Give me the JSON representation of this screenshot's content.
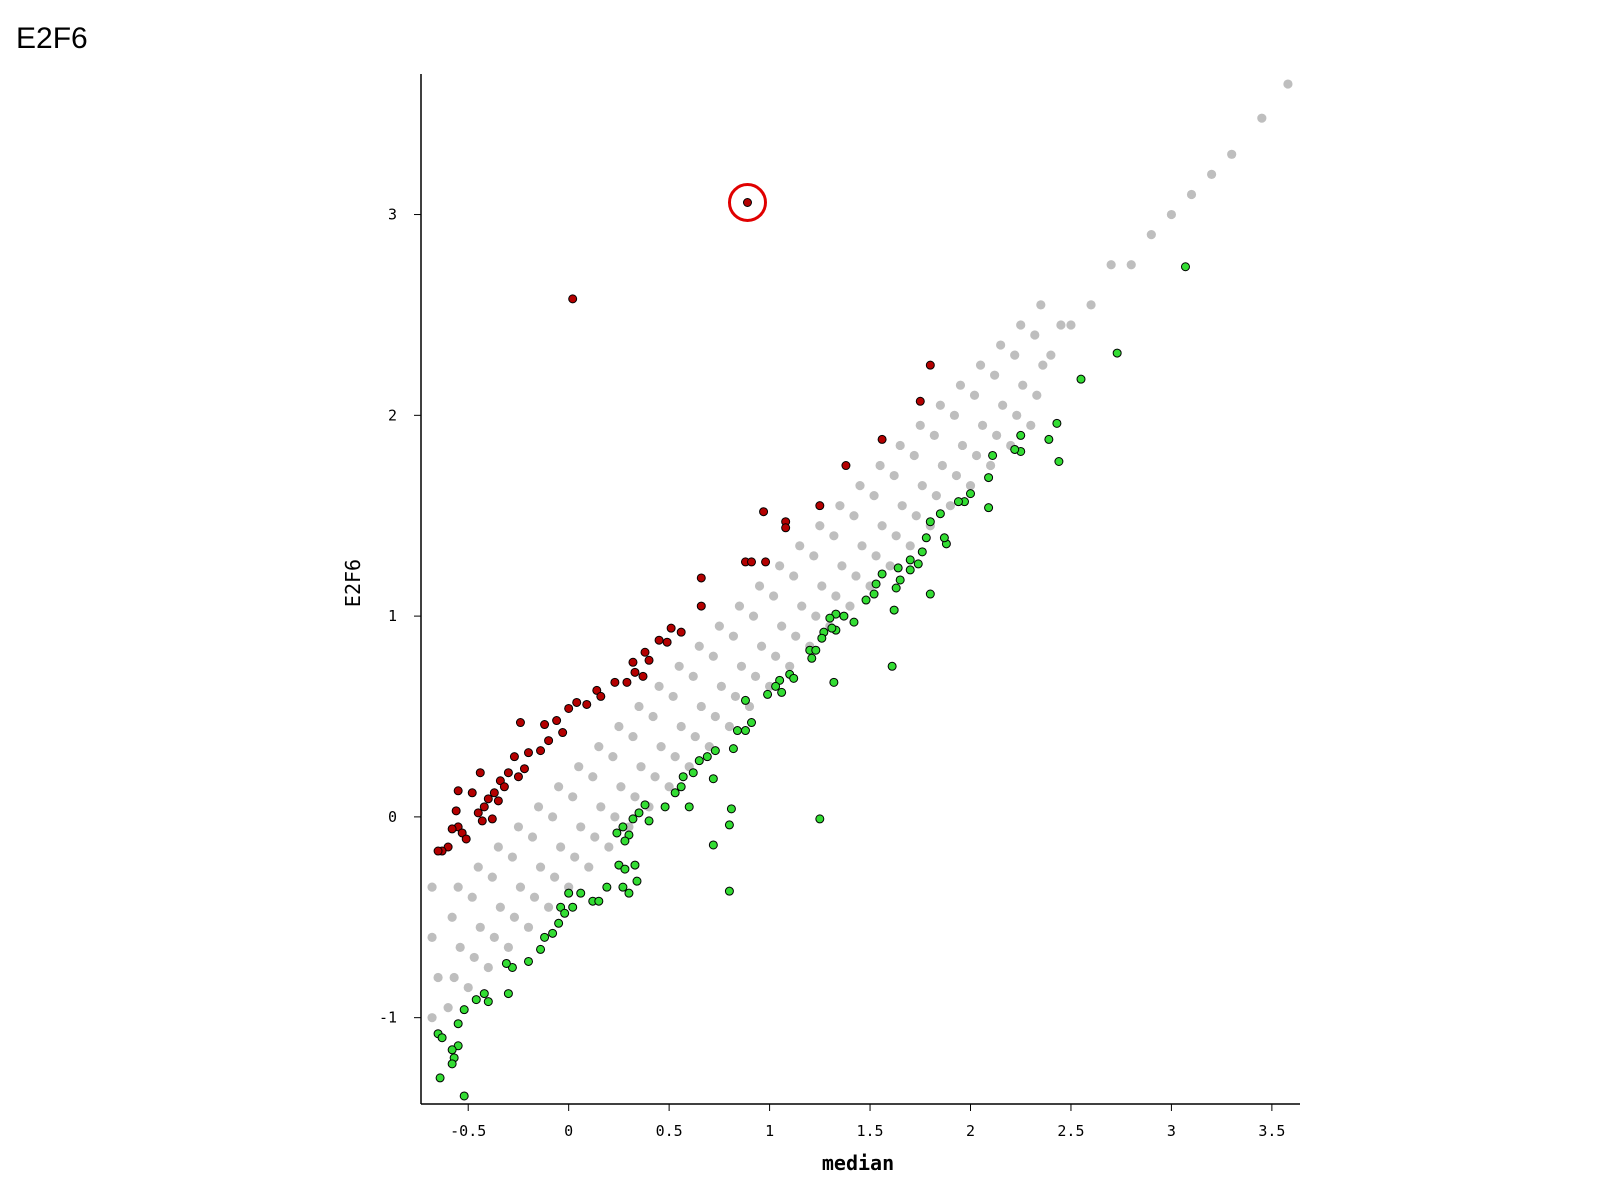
{
  "chart_data": {
    "type": "scatter",
    "title": "E2F6",
    "x_label": "median",
    "y_label": "E2F6",
    "xlim": [
      -0.735,
      3.64
    ],
    "ylim": [
      -1.43,
      3.7
    ],
    "xticks": [
      -0.5,
      0,
      0.5,
      1,
      1.5,
      2,
      2.5,
      3,
      3.5
    ],
    "yticks": [
      -1,
      0,
      1,
      2,
      3
    ],
    "series": [
      {
        "color": "#bebebe",
        "x": [
          -0.6,
          -0.57,
          -0.54,
          -0.58,
          -0.55,
          -0.5,
          -0.47,
          -0.44,
          -0.48,
          -0.45,
          -0.4,
          -0.37,
          -0.34,
          -0.38,
          -0.35,
          -0.3,
          -0.27,
          -0.24,
          -0.28,
          -0.25,
          -0.2,
          -0.17,
          -0.14,
          -0.18,
          -0.15,
          -0.1,
          -0.07,
          -0.04,
          -0.08,
          -0.05,
          0,
          0.03,
          0.06,
          0.02,
          0.05,
          0.1,
          0.13,
          0.16,
          0.12,
          0.15,
          0.2,
          0.23,
          0.26,
          0.22,
          0.25,
          0.3,
          0.33,
          0.36,
          0.32,
          0.35,
          0.4,
          0.43,
          0.46,
          0.42,
          0.45,
          0.5,
          0.53,
          0.56,
          0.52,
          0.55,
          0.6,
          0.63,
          0.66,
          0.62,
          0.65,
          0.7,
          0.73,
          0.76,
          0.72,
          0.75,
          0.8,
          0.83,
          0.86,
          0.82,
          0.85,
          0.9,
          0.93,
          0.96,
          0.92,
          0.95,
          1,
          1.03,
          1.06,
          1.02,
          1.05,
          1.1,
          1.13,
          1.16,
          1.12,
          1.15,
          1.2,
          1.23,
          1.26,
          1.22,
          1.25,
          1.3,
          1.33,
          1.36,
          1.32,
          1.35,
          1.4,
          1.43,
          1.46,
          1.42,
          1.45,
          1.5,
          1.53,
          1.56,
          1.52,
          1.55,
          1.6,
          1.63,
          1.66,
          1.62,
          1.65,
          1.7,
          1.73,
          1.76,
          1.72,
          1.75,
          1.8,
          1.83,
          1.86,
          1.82,
          1.85,
          1.9,
          1.93,
          1.96,
          1.92,
          1.95,
          2,
          2.03,
          2.06,
          2.02,
          2.05,
          2.1,
          2.13,
          2.16,
          2.12,
          2.15,
          2.2,
          2.23,
          2.26,
          2.22,
          2.25,
          2.3,
          2.33,
          2.36,
          2.32,
          2.35,
          2.4,
          2.45,
          2.5,
          2.6,
          2.7,
          2.8,
          2.9,
          3,
          3.1,
          3.2,
          3.3,
          3.45,
          3.58,
          -0.68,
          -0.68,
          -0.68,
          -0.65
        ],
        "values": [
          -0.95,
          -0.8,
          -0.65,
          -0.5,
          -0.35,
          -0.85,
          -0.7,
          -0.55,
          -0.4,
          -0.25,
          -0.75,
          -0.6,
          -0.45,
          -0.3,
          -0.15,
          -0.65,
          -0.5,
          -0.35,
          -0.2,
          -0.05,
          -0.55,
          -0.4,
          -0.25,
          -0.1,
          0.05,
          -0.45,
          -0.3,
          -0.15,
          0,
          0.15,
          -0.35,
          -0.2,
          -0.05,
          0.1,
          0.25,
          -0.25,
          -0.1,
          0.05,
          0.2,
          0.35,
          -0.15,
          0,
          0.15,
          0.3,
          0.45,
          -0.05,
          0.1,
          0.25,
          0.4,
          0.55,
          0.05,
          0.2,
          0.35,
          0.5,
          0.65,
          0.15,
          0.3,
          0.45,
          0.6,
          0.75,
          0.25,
          0.4,
          0.55,
          0.7,
          0.85,
          0.35,
          0.5,
          0.65,
          0.8,
          0.95,
          0.45,
          0.6,
          0.75,
          0.9,
          1.05,
          0.55,
          0.7,
          0.85,
          1,
          1.15,
          0.65,
          0.8,
          0.95,
          1.1,
          1.25,
          0.75,
          0.9,
          1.05,
          1.2,
          1.35,
          0.85,
          1,
          1.15,
          1.3,
          1.45,
          0.95,
          1.1,
          1.25,
          1.4,
          1.55,
          1.05,
          1.2,
          1.35,
          1.5,
          1.65,
          1.15,
          1.3,
          1.45,
          1.6,
          1.75,
          1.25,
          1.4,
          1.55,
          1.7,
          1.85,
          1.35,
          1.5,
          1.65,
          1.8,
          1.95,
          1.45,
          1.6,
          1.75,
          1.9,
          2.05,
          1.55,
          1.7,
          1.85,
          2,
          2.15,
          1.65,
          1.8,
          1.95,
          2.1,
          2.25,
          1.75,
          1.9,
          2.05,
          2.2,
          2.35,
          1.85,
          2,
          2.15,
          2.3,
          2.45,
          1.95,
          2.1,
          2.25,
          2.4,
          2.55,
          2.3,
          2.45,
          2.45,
          2.55,
          2.75,
          2.75,
          2.9,
          3,
          3.1,
          3.2,
          3.3,
          3.48,
          3.65,
          -1,
          -0.6,
          -0.35,
          -0.8
        ]
      },
      {
        "color": "#b40000",
        "edgecolor": "#000000",
        "x": [
          0.02,
          0.89,
          1.8,
          1.75,
          1.56,
          1.38,
          1.25,
          1.08,
          1.08,
          0.97,
          0.98,
          0.88,
          0.91,
          0.66,
          0.66,
          0.51,
          0.56,
          0.49,
          0.45,
          0.38,
          0.4,
          0.32,
          0.33,
          0.37,
          0.29,
          0.23,
          0.14,
          0.16,
          0.04,
          0.09,
          0,
          -0.06,
          -0.24,
          -0.12,
          -0.03,
          -0.1,
          -0.14,
          -0.2,
          -0.27,
          -0.22,
          -0.25,
          -0.3,
          -0.44,
          -0.34,
          -0.32,
          -0.37,
          -0.4,
          -0.35,
          -0.42,
          -0.48,
          -0.45,
          -0.38,
          -0.43,
          -0.55,
          -0.55,
          -0.53,
          -0.51,
          -0.58,
          -0.6,
          -0.63,
          -0.65,
          -0.56
        ],
        "values": [
          2.58,
          3.06,
          2.25,
          2.07,
          1.88,
          1.75,
          1.55,
          1.47,
          1.44,
          1.52,
          1.27,
          1.27,
          1.27,
          1.19,
          1.05,
          0.94,
          0.92,
          0.87,
          0.88,
          0.82,
          0.78,
          0.77,
          0.72,
          0.7,
          0.67,
          0.67,
          0.63,
          0.6,
          0.57,
          0.56,
          0.54,
          0.48,
          0.47,
          0.46,
          0.42,
          0.38,
          0.33,
          0.32,
          0.3,
          0.24,
          0.2,
          0.22,
          0.22,
          0.18,
          0.15,
          0.12,
          0.09,
          0.08,
          0.05,
          0.12,
          0.02,
          -0.01,
          -0.02,
          -0.05,
          0.13,
          -0.08,
          -0.11,
          -0.06,
          -0.15,
          -0.17,
          -0.17,
          0.03
        ]
      },
      {
        "color": "#33dd33",
        "edgecolor": "#000000",
        "x": [
          3.07,
          2.73,
          2.55,
          2.43,
          2.39,
          2.44,
          2.25,
          2.25,
          2.22,
          2.11,
          2.09,
          2.09,
          2,
          1.97,
          1.94,
          1.88,
          1.87,
          1.85,
          1.8,
          1.78,
          1.76,
          1.74,
          1.7,
          1.7,
          1.64,
          1.65,
          1.63,
          1.8,
          1.56,
          1.53,
          1.52,
          1.48,
          1.62,
          1.42,
          1.37,
          1.33,
          1.3,
          1.33,
          1.31,
          1.27,
          1.26,
          1.2,
          1.23,
          1.21,
          1.61,
          1.32,
          1.1,
          1.12,
          1.05,
          1.03,
          1.06,
          0.99,
          0.88,
          0.91,
          0.88,
          0.84,
          0.82,
          0.73,
          0.69,
          0.65,
          0.62,
          0.57,
          0.56,
          0.53,
          0.72,
          0.6,
          0.48,
          0.38,
          0.35,
          0.32,
          0.4,
          0.27,
          0.3,
          0.24,
          0.28,
          0.8,
          0.81,
          0.72,
          1.25,
          0.8,
          0.25,
          0.28,
          0.33,
          0.34,
          0.3,
          0.27,
          0.19,
          0.12,
          0.15,
          0.06,
          0.02,
          0,
          -0.04,
          -0.02,
          -0.05,
          -0.08,
          -0.12,
          -0.14,
          -0.2,
          -0.28,
          -0.31,
          -0.3,
          -0.42,
          -0.46,
          -0.4,
          -0.52,
          -0.55,
          -0.65,
          -0.63,
          -0.55,
          -0.57,
          -0.58,
          -0.64,
          -0.52,
          -0.58
        ],
        "values": [
          2.74,
          2.31,
          2.18,
          1.96,
          1.88,
          1.77,
          1.9,
          1.82,
          1.83,
          1.8,
          1.69,
          1.54,
          1.61,
          1.57,
          1.57,
          1.36,
          1.39,
          1.51,
          1.47,
          1.39,
          1.32,
          1.26,
          1.28,
          1.23,
          1.24,
          1.18,
          1.14,
          1.11,
          1.21,
          1.16,
          1.11,
          1.08,
          1.03,
          0.97,
          1,
          1.01,
          0.99,
          0.93,
          0.94,
          0.92,
          0.89,
          0.83,
          0.83,
          0.79,
          0.75,
          0.67,
          0.71,
          0.69,
          0.68,
          0.65,
          0.62,
          0.61,
          0.58,
          0.47,
          0.43,
          0.43,
          0.34,
          0.33,
          0.3,
          0.28,
          0.22,
          0.2,
          0.15,
          0.12,
          0.19,
          0.05,
          0.05,
          0.06,
          0.02,
          -0.01,
          -0.02,
          -0.05,
          -0.09,
          -0.08,
          -0.12,
          -0.04,
          0.04,
          -0.14,
          -0.01,
          -0.37,
          -0.24,
          -0.26,
          -0.24,
          -0.32,
          -0.38,
          -0.35,
          -0.35,
          -0.42,
          -0.42,
          -0.38,
          -0.45,
          -0.38,
          -0.45,
          -0.48,
          -0.53,
          -0.58,
          -0.6,
          -0.66,
          -0.72,
          -0.75,
          -0.73,
          -0.88,
          -0.88,
          -0.91,
          -0.92,
          -0.96,
          -1.03,
          -1.08,
          -1.1,
          -1.14,
          -1.2,
          -1.23,
          -1.3,
          -1.39,
          -1.16
        ]
      }
    ]
  }
}
